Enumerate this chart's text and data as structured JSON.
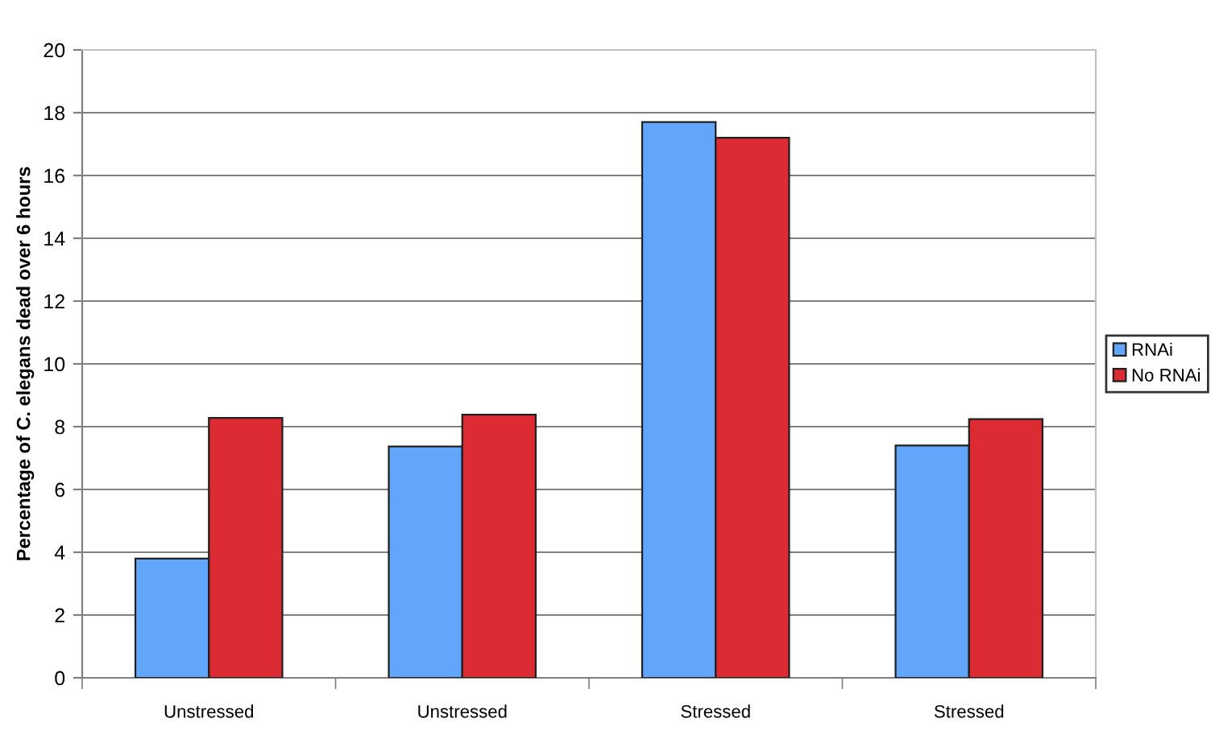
{
  "chart_data": {
    "type": "bar",
    "ylabel": "Percentage of C. elegans dead over 6 hours",
    "categories": [
      "Unstressed",
      "Unstressed",
      "Stressed",
      "Stressed"
    ],
    "series": [
      {
        "name": "RNAi",
        "color": "#61a6fb",
        "values": [
          3.8,
          7.37,
          17.7,
          7.4
        ]
      },
      {
        "name": "No RNAi",
        "color": "#dc2b33",
        "values": [
          8.28,
          8.38,
          17.2,
          8.24
        ]
      }
    ],
    "ylim": [
      0,
      20
    ],
    "yticks": [
      0,
      2,
      4,
      6,
      8,
      10,
      12,
      14,
      16,
      18,
      20
    ],
    "grid": "y",
    "legend": "right"
  }
}
